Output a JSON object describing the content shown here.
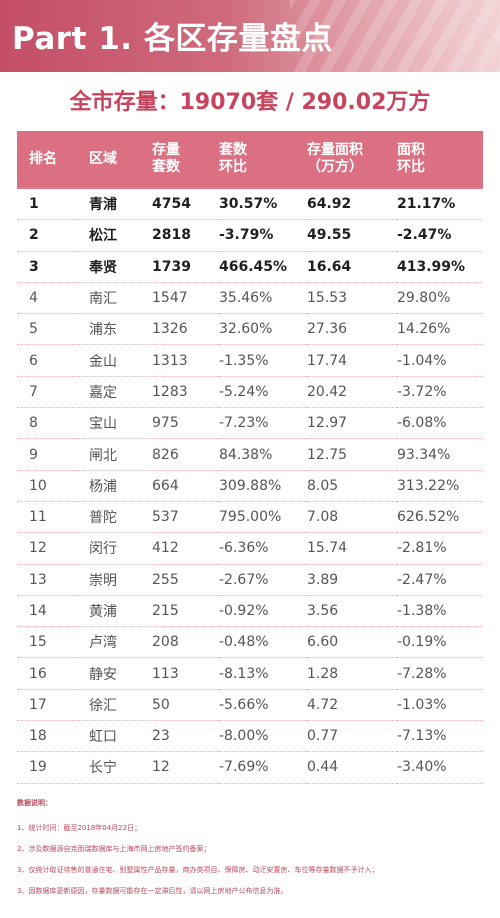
{
  "banner": {
    "title": "Part 1. 各区存量盘点"
  },
  "summary": "全市存量：19070套 / 290.02万方",
  "table": {
    "headers": [
      {
        "l1": "排名",
        "l2": ""
      },
      {
        "l1": "区域",
        "l2": ""
      },
      {
        "l1": "存量",
        "l2": "套数"
      },
      {
        "l1": "套数",
        "l2": "环比"
      },
      {
        "l1": "存量面积",
        "l2": "（万方）"
      },
      {
        "l1": "面积",
        "l2": "环比"
      }
    ],
    "rows": [
      [
        "1",
        "青浦",
        "4754",
        "30.57%",
        "64.92",
        "21.17%"
      ],
      [
        "2",
        "松江",
        "2818",
        "-3.79%",
        "49.55",
        "-2.47%"
      ],
      [
        "3",
        "奉贤",
        "1739",
        "466.45%",
        "16.64",
        "413.99%"
      ],
      [
        "4",
        "南汇",
        "1547",
        "35.46%",
        "15.53",
        "29.80%"
      ],
      [
        "5",
        "浦东",
        "1326",
        "32.60%",
        "27.36",
        "14.26%"
      ],
      [
        "6",
        "金山",
        "1313",
        "-1.35%",
        "17.74",
        "-1.04%"
      ],
      [
        "7",
        "嘉定",
        "1283",
        "-5.24%",
        "20.42",
        "-3.72%"
      ],
      [
        "8",
        "宝山",
        "975",
        "-7.23%",
        "12.97",
        "-6.08%"
      ],
      [
        "9",
        "闸北",
        "826",
        "84.38%",
        "12.75",
        "93.34%"
      ],
      [
        "10",
        "杨浦",
        "664",
        "309.88%",
        "8.05",
        "313.22%"
      ],
      [
        "11",
        "普陀",
        "537",
        "795.00%",
        "7.08",
        "626.52%"
      ],
      [
        "12",
        "闵行",
        "412",
        "-6.36%",
        "15.74",
        "-2.81%"
      ],
      [
        "13",
        "崇明",
        "255",
        "-2.67%",
        "3.89",
        "-2.47%"
      ],
      [
        "14",
        "黄浦",
        "215",
        "-0.92%",
        "3.56",
        "-1.38%"
      ],
      [
        "15",
        "卢湾",
        "208",
        "-0.48%",
        "6.60",
        "-0.19%"
      ],
      [
        "16",
        "静安",
        "113",
        "-8.13%",
        "1.28",
        "-7.28%"
      ],
      [
        "17",
        "徐汇",
        "50",
        "-5.66%",
        "4.72",
        "-1.03%"
      ],
      [
        "18",
        "虹口",
        "23",
        "-8.00%",
        "0.77",
        "-7.13%"
      ],
      [
        "19",
        "长宁",
        "12",
        "-7.69%",
        "0.44",
        "-3.40%"
      ]
    ]
  },
  "notes": {
    "title": "数据说明：",
    "items": [
      "1、统计时间：截至2018年04月22日；",
      "2、涉及数据源自克而瑞数据库与上海市网上房地产签约备案；",
      "3、仅统计取证待售的普通住宅、别墅属性产品存量，商办类项目、保障房、动迁安置房、车位等存量数据不予计入；",
      "3、因数据库更新原因，存量数据可能存在一定滞后性，请以网上房地产公布信息为准。"
    ]
  },
  "colors": {
    "accent": "#c8445e",
    "header_bg": "#db7083",
    "banner_start": "#c44e66"
  }
}
